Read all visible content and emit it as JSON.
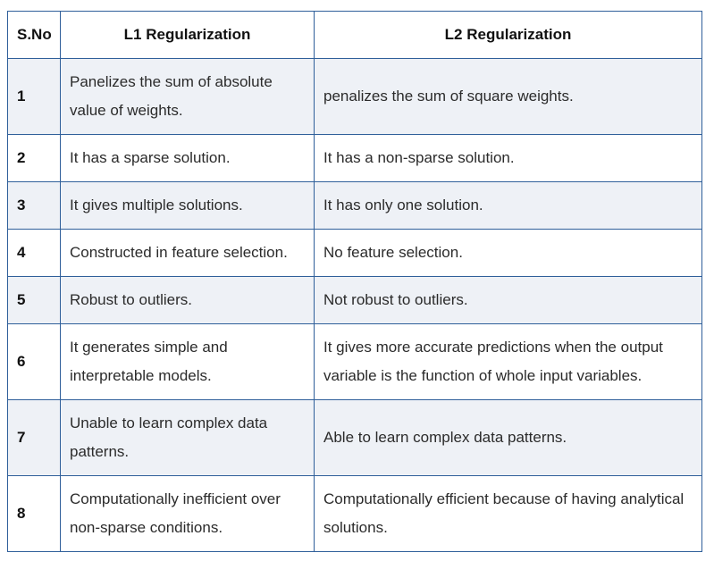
{
  "table": {
    "headers": [
      "S.No",
      "L1 Regularization",
      "L2 Regularization"
    ],
    "rows": [
      {
        "sno": "1",
        "l1": "Panelizes the sum of absolute value of weights.",
        "l2": "penalizes the sum of square weights."
      },
      {
        "sno": "2",
        "l1": "It has a sparse solution.",
        "l2": "It has a non-sparse solution."
      },
      {
        "sno": "3",
        "l1": "It gives multiple solutions.",
        "l2": "It has only one solution."
      },
      {
        "sno": "4",
        "l1": "Constructed in feature selection.",
        "l2": "No feature selection."
      },
      {
        "sno": "5",
        "l1": "Robust to outliers.",
        "l2": "Not robust to outliers."
      },
      {
        "sno": "6",
        "l1": "It generates simple and interpretable models.",
        "l2": "It gives more accurate predictions when the output variable is the function of whole input variables."
      },
      {
        "sno": "7",
        "l1": "Unable to learn complex data patterns.",
        "l2": "Able to learn complex data patterns."
      },
      {
        "sno": "8",
        "l1": "Computationally inefficient over non-sparse conditions.",
        "l2": "Computationally efficient because of having analytical solutions."
      }
    ]
  }
}
